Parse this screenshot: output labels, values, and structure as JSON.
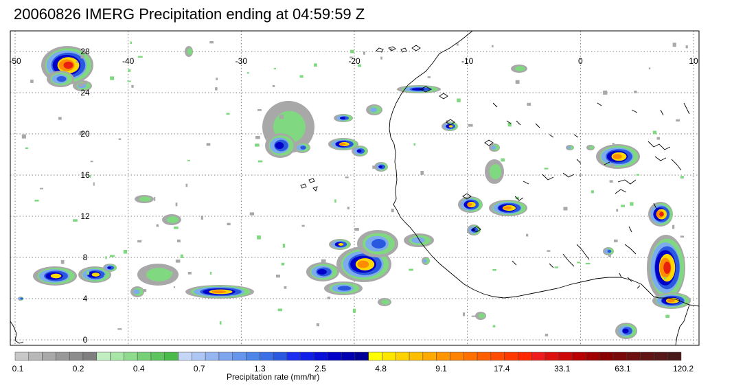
{
  "title": "20060826 IMERG Precipitation ending at 04:59:59 Z",
  "map": {
    "lon_range": [
      -50,
      10
    ],
    "lat_range": [
      0,
      30
    ],
    "lon_ticks": [
      "-50",
      "-40",
      "-30",
      "-20",
      "-10",
      "0",
      "10"
    ],
    "lat_ticks": [
      "28",
      "24",
      "20",
      "16",
      "12",
      "8",
      "4",
      "0"
    ],
    "gridlines": true,
    "frame_color": "#000000",
    "coast_color": "#000000"
  },
  "colorbar": {
    "title": "Precipitation rate (mm/hr)",
    "tick_labels": [
      "0.1",
      "0.2",
      "0.4",
      "0.7",
      "1.3",
      "2.5",
      "4.8",
      "9.1",
      "17.4",
      "33.1",
      "63.1",
      "120.2"
    ],
    "colors": [
      "#c8c8c8",
      "#b8b8b8",
      "#a8a8a8",
      "#999999",
      "#8c8c8c",
      "#7f7f7f",
      "#c2efc2",
      "#a8e6a8",
      "#8edb8e",
      "#76d076",
      "#5ec45e",
      "#4aba4a",
      "#c6d6f7",
      "#aec6f4",
      "#96b6f1",
      "#7ea6ee",
      "#6696eb",
      "#4e86e8",
      "#3a6fe6",
      "#2a59e0",
      "#1a2ff0",
      "#1020e8",
      "#0810d8",
      "#0000c8",
      "#0000b0",
      "#000096",
      "#ffff00",
      "#ffe600",
      "#ffd200",
      "#ffbe00",
      "#ffaa00",
      "#ff9600",
      "#ff8200",
      "#ff7000",
      "#ff5e00",
      "#ff4c00",
      "#ff3a00",
      "#ff2800",
      "#ee1c1c",
      "#dd1010",
      "#cc0808",
      "#b80000",
      "#a00000",
      "#880000",
      "#7a0a0a",
      "#6e1010",
      "#621414",
      "#561818",
      "#4a1a1a"
    ]
  },
  "precip_palette": {
    "gray": "#a8a8a8",
    "green": "#80d880",
    "light_blue": "#7eaaee",
    "blue": "#2a59e0",
    "dark_blue": "#0000c8",
    "yellow": "#ffd800",
    "orange": "#ff8c00",
    "red": "#e82010",
    "dark_red": "#a00000"
  }
}
